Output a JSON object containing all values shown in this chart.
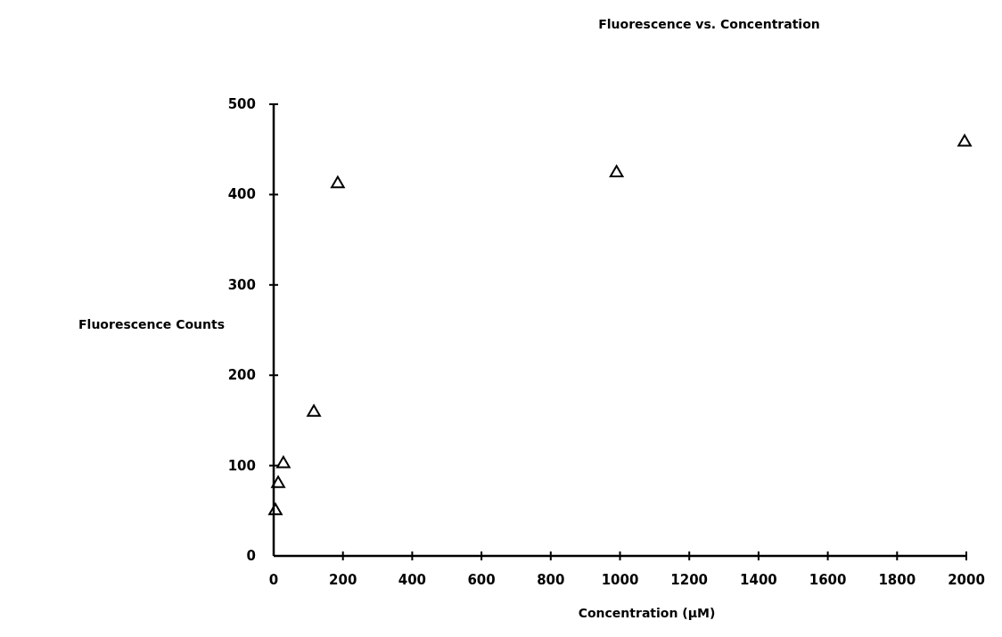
{
  "chart_data": {
    "type": "scatter",
    "title": "Fluorescence vs. Concentration",
    "xlabel": "Concentration (µM)",
    "ylabel": "Fluorescence Counts",
    "x": [
      5,
      13,
      28,
      116,
      185,
      990,
      1995
    ],
    "values": [
      50,
      80,
      102,
      159,
      412,
      424,
      458
    ],
    "color": "#000000",
    "marker": "triangle",
    "xlim": [
      0,
      2000
    ],
    "xticks": [
      0,
      200,
      400,
      600,
      800,
      1000,
      1200,
      1400,
      1600,
      1800,
      2000
    ],
    "ylim": [
      0,
      500
    ],
    "yticks": [
      0,
      100,
      200,
      300,
      400,
      500
    ]
  }
}
